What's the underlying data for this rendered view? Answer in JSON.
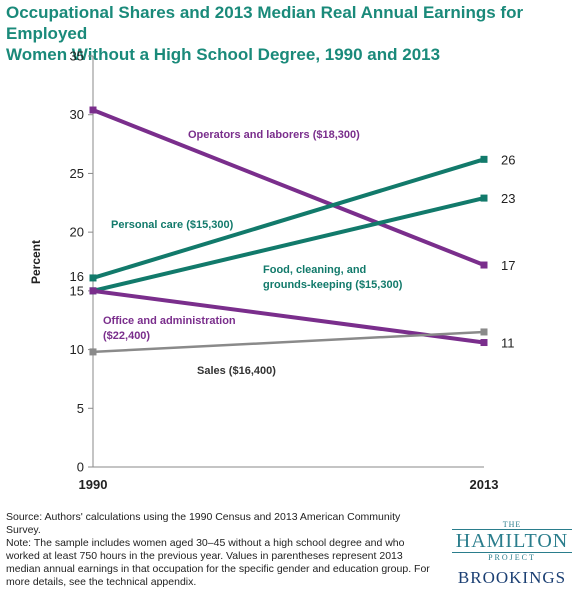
{
  "chart_data": {
    "type": "line",
    "title_line1": "Occupational Shares and 2013 Median Real Annual Earnings for Employed",
    "title_line2": "Women Without a High School Degree, 1990 and 2013",
    "ylabel": "Percent",
    "ylim": [
      0,
      35
    ],
    "yticks": [
      "0",
      "5",
      "10",
      "15",
      "20",
      "25",
      "30",
      "35"
    ],
    "x": [
      "1990",
      "2013"
    ],
    "extra_ytick": "16",
    "series": [
      {
        "name": "Operators and laborers ($18,300)",
        "values": [
          30.4,
          17.2
        ],
        "color": "#7a2e8c",
        "end_label": "17"
      },
      {
        "name": "Personal care ($15,300)",
        "values": [
          16.1,
          26.2
        ],
        "color": "#127a6b",
        "end_label": "26"
      },
      {
        "name": "Food, cleaning, and grounds-keeping ($15,300)",
        "label_lines": [
          "Food, cleaning, and",
          "grounds-keeping ($15,300)"
        ],
        "values": [
          15.0,
          22.9
        ],
        "color": "#127a6b",
        "end_label": "23"
      },
      {
        "name": "Office and administration ($22,400)",
        "label_lines": [
          "Office and administration",
          "($22,400)"
        ],
        "values": [
          15.0,
          10.6
        ],
        "color": "#7a2e8c",
        "end_label": "11"
      },
      {
        "name": "Sales ($16,400)",
        "values": [
          9.8,
          11.5
        ],
        "color": "#8a8a8a",
        "end_label": ""
      }
    ]
  },
  "notes": {
    "source": "Source: Authors' calculations using the 1990 Census and 2013 American Community Survey.",
    "note": "Note: The sample includes women aged 30–45 without a high school degree and who worked at least 750 hours in the previous year. Values in parentheses represent 2013 median annual earnings in that occupation for the specific gender and education group. For more details, see the technical appendix."
  },
  "logo": {
    "the": "THE",
    "main": "HAMILTON",
    "project": "PROJECT",
    "brookings": "BROOKINGS"
  }
}
